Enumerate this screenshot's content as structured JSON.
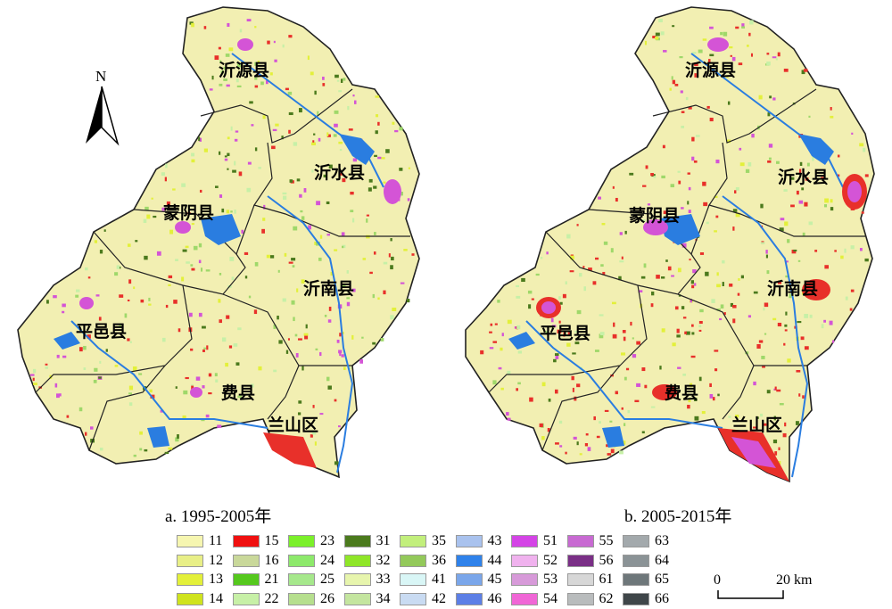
{
  "panels": [
    {
      "caption": "a. 1995-2005年",
      "counties": [
        "沂源县",
        "沂水县",
        "蒙阴县",
        "沂南县",
        "平邑县",
        "费县",
        "兰山区"
      ]
    },
    {
      "caption": "b. 2005-2015年",
      "counties": [
        "沂源县",
        "沂水县",
        "蒙阴县",
        "沂南县",
        "平邑县",
        "费县",
        "兰山区"
      ]
    }
  ],
  "north_arrow": {
    "label": "N"
  },
  "scale_bar": {
    "start": "0",
    "end": "20 km"
  },
  "legend": [
    {
      "code": "11",
      "color": "#f6f6b0"
    },
    {
      "code": "12",
      "color": "#e8ef87"
    },
    {
      "code": "13",
      "color": "#e3f03a"
    },
    {
      "code": "14",
      "color": "#cfe31e"
    },
    {
      "code": "15",
      "color": "#f01010"
    },
    {
      "code": "16",
      "color": "#c9d89a"
    },
    {
      "code": "21",
      "color": "#55c81e"
    },
    {
      "code": "22",
      "color": "#c7f0a7"
    },
    {
      "code": "23",
      "color": "#7bf02a"
    },
    {
      "code": "24",
      "color": "#8de96b"
    },
    {
      "code": "25",
      "color": "#a6e88c"
    },
    {
      "code": "26",
      "color": "#b6df8e"
    },
    {
      "code": "31",
      "color": "#4b7a1d"
    },
    {
      "code": "32",
      "color": "#8fe628"
    },
    {
      "code": "33",
      "color": "#e7f5ad"
    },
    {
      "code": "34",
      "color": "#c4e59f"
    },
    {
      "code": "35",
      "color": "#c2ef7c"
    },
    {
      "code": "36",
      "color": "#93c95a"
    },
    {
      "code": "41",
      "color": "#d9f6f6"
    },
    {
      "code": "42",
      "color": "#c9dbf2"
    },
    {
      "code": "43",
      "color": "#a9c2ee"
    },
    {
      "code": "44",
      "color": "#2f82ea"
    },
    {
      "code": "45",
      "color": "#7aa6ea"
    },
    {
      "code": "46",
      "color": "#5c7fe6"
    },
    {
      "code": "51",
      "color": "#d444e6"
    },
    {
      "code": "52",
      "color": "#f0b2ee"
    },
    {
      "code": "53",
      "color": "#d79ad9"
    },
    {
      "code": "54",
      "color": "#f066d6"
    },
    {
      "code": "55",
      "color": "#c86ad2"
    },
    {
      "code": "56",
      "color": "#7a2f86"
    },
    {
      "code": "61",
      "color": "#d7d7d7"
    },
    {
      "code": "62",
      "color": "#b9bcbd"
    },
    {
      "code": "63",
      "color": "#a3a9ac"
    },
    {
      "code": "64",
      "color": "#8b9396"
    },
    {
      "code": "65",
      "color": "#6e777a"
    },
    {
      "code": "66",
      "color": "#3f4649"
    }
  ],
  "colors": {
    "base": "#f2efb2",
    "boundary": "#222222",
    "river": "#2a7de0",
    "built_up": "#e8302a",
    "town": "#d454d6"
  }
}
